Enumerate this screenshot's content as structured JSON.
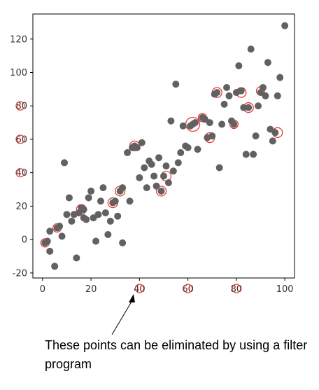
{
  "chart_data": {
    "type": "scatter",
    "title": "",
    "xlabel": "",
    "ylabel": "",
    "xlim": [
      -4,
      104
    ],
    "ylim": [
      -23,
      135
    ],
    "xticks": [
      0,
      20,
      40,
      60,
      80,
      100
    ],
    "yticks": [
      -20,
      0,
      20,
      40,
      60,
      80,
      100,
      120
    ],
    "grid": false,
    "legend": "none",
    "marker_color": "#616161",
    "highlight_color": "#e8302a",
    "annotation": {
      "text": "These points can be eliminated by using a filter program",
      "target": [
        39,
        40
      ]
    },
    "points": [
      [
        1,
        -2
      ],
      [
        2,
        -1
      ],
      [
        3,
        -7
      ],
      [
        3,
        5
      ],
      [
        5,
        -16
      ],
      [
        6,
        7
      ],
      [
        7,
        8
      ],
      [
        8,
        2
      ],
      [
        9,
        46
      ],
      [
        10,
        15
      ],
      [
        11,
        25
      ],
      [
        12,
        11
      ],
      [
        13,
        15
      ],
      [
        14,
        -11
      ],
      [
        15,
        16
      ],
      [
        16,
        19
      ],
      [
        17,
        13
      ],
      [
        17,
        18
      ],
      [
        18,
        12
      ],
      [
        19,
        25
      ],
      [
        20,
        29
      ],
      [
        21,
        13
      ],
      [
        22,
        -1
      ],
      [
        23,
        15
      ],
      [
        24,
        23
      ],
      [
        25,
        31
      ],
      [
        26,
        16
      ],
      [
        27,
        3
      ],
      [
        28,
        11
      ],
      [
        29,
        22
      ],
      [
        30,
        23
      ],
      [
        31,
        14
      ],
      [
        32,
        29
      ],
      [
        33,
        -2
      ],
      [
        33,
        31
      ],
      [
        35,
        52
      ],
      [
        36,
        23
      ],
      [
        37,
        55
      ],
      [
        38,
        56
      ],
      [
        39,
        55
      ],
      [
        40,
        37
      ],
      [
        41,
        58
      ],
      [
        42,
        43
      ],
      [
        43,
        31
      ],
      [
        44,
        47
      ],
      [
        45,
        45
      ],
      [
        46,
        38
      ],
      [
        47,
        32
      ],
      [
        48,
        49
      ],
      [
        49,
        29
      ],
      [
        50,
        38
      ],
      [
        51,
        44
      ],
      [
        52,
        34
      ],
      [
        53,
        71
      ],
      [
        54,
        41
      ],
      [
        55,
        93
      ],
      [
        56,
        46
      ],
      [
        57,
        52
      ],
      [
        58,
        68
      ],
      [
        59,
        56
      ],
      [
        60,
        55
      ],
      [
        61,
        68
      ],
      [
        62,
        69
      ],
      [
        63,
        70
      ],
      [
        64,
        54
      ],
      [
        66,
        73
      ],
      [
        67,
        72
      ],
      [
        68,
        61
      ],
      [
        69,
        70
      ],
      [
        70,
        62
      ],
      [
        71,
        87
      ],
      [
        72,
        88
      ],
      [
        73,
        43
      ],
      [
        74,
        69
      ],
      [
        75,
        81
      ],
      [
        76,
        91
      ],
      [
        77,
        86
      ],
      [
        78,
        71
      ],
      [
        79,
        69
      ],
      [
        80,
        88
      ],
      [
        81,
        104
      ],
      [
        82,
        89
      ],
      [
        83,
        79
      ],
      [
        84,
        51
      ],
      [
        85,
        79
      ],
      [
        86,
        114
      ],
      [
        87,
        51
      ],
      [
        88,
        62
      ],
      [
        89,
        80
      ],
      [
        90,
        88
      ],
      [
        91,
        91
      ],
      [
        92,
        86
      ],
      [
        93,
        106
      ],
      [
        94,
        66
      ],
      [
        95,
        59
      ],
      [
        96,
        64
      ],
      [
        97,
        86
      ],
      [
        98,
        97
      ],
      [
        100,
        128
      ]
    ],
    "highlights": [
      {
        "x": 1,
        "y": -2,
        "r": 6
      },
      {
        "x": 6,
        "y": 7,
        "r": 6
      },
      {
        "x": 16,
        "y": 18,
        "r": 7
      },
      {
        "x": 29,
        "y": 22,
        "r": 7
      },
      {
        "x": 32,
        "y": 29,
        "r": 7
      },
      {
        "x": 38,
        "y": 56,
        "r": 7
      },
      {
        "x": 49,
        "y": 29,
        "r": 7
      },
      {
        "x": 51,
        "y": 38,
        "r": 7
      },
      {
        "x": 62,
        "y": 69,
        "r": 10
      },
      {
        "x": 66,
        "y": 73,
        "r": 6
      },
      {
        "x": 69,
        "y": 61,
        "r": 7
      },
      {
        "x": 72,
        "y": 88,
        "r": 7
      },
      {
        "x": 79,
        "y": 69,
        "r": 6
      },
      {
        "x": 82,
        "y": 88,
        "r": 7
      },
      {
        "x": 85,
        "y": 79,
        "r": 7
      },
      {
        "x": 90,
        "y": 89,
        "r": 6
      },
      {
        "x": 97,
        "y": 64,
        "r": 7
      }
    ],
    "margin_marks": [
      {
        "axis": "y",
        "value": 80
      },
      {
        "axis": "y",
        "value": 60
      },
      {
        "axis": "y",
        "value": 40
      },
      {
        "axis": "x",
        "value": 40
      },
      {
        "axis": "x",
        "value": 60
      },
      {
        "axis": "x",
        "value": 80
      }
    ]
  }
}
